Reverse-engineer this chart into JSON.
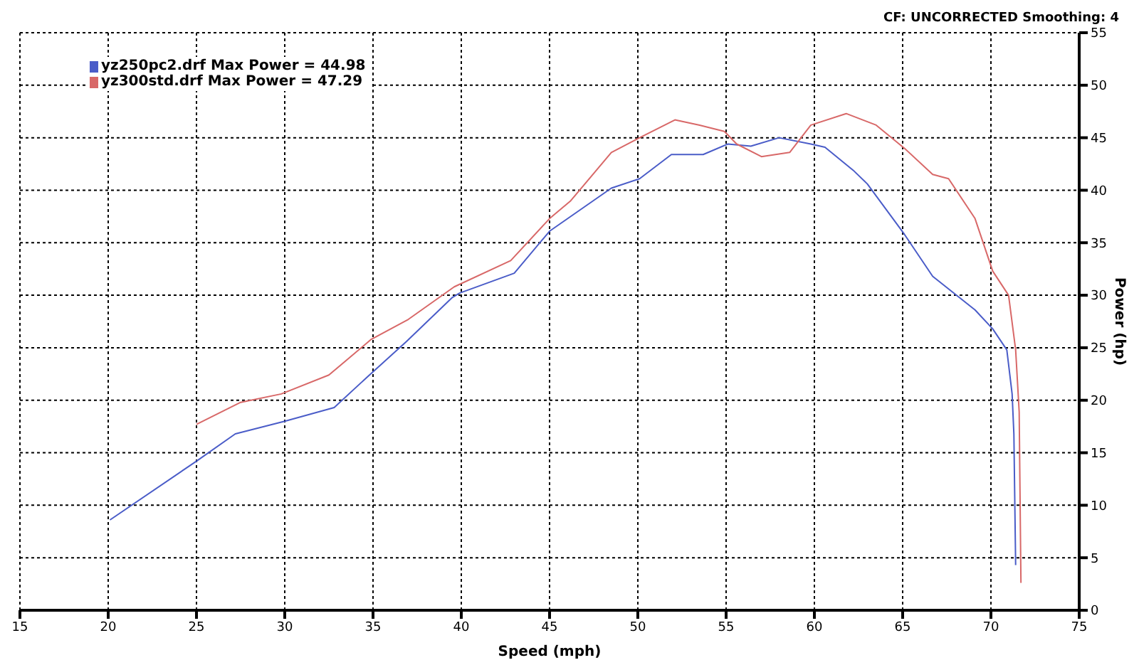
{
  "chart_data": {
    "type": "line",
    "xlabel": "Speed (mph)",
    "ylabel": "Power (hp)",
    "annotations": [
      "CF: UNCORRECTED  Smoothing: 4"
    ],
    "xlim": [
      15,
      75
    ],
    "xticks": [
      15,
      20,
      25,
      30,
      35,
      40,
      45,
      50,
      55,
      60,
      65,
      70,
      75
    ],
    "ylim": [
      0,
      55
    ],
    "yticks": [
      0,
      5,
      10,
      15,
      20,
      25,
      30,
      35,
      40,
      45,
      50,
      55
    ],
    "grid": true,
    "legend": "top left",
    "marker": "none",
    "line_style": "solid",
    "series": [
      {
        "name": "yz250pc2.drf Max Power = 44.98",
        "color": "#4a5cc8",
        "x": [
          20.1,
          25.0,
          27.2,
          30.0,
          32.8,
          34.6,
          36.9,
          39.5,
          39.9,
          43.0,
          45.0,
          48.5,
          50.1,
          51.9,
          53.7,
          55.1,
          56.4,
          58.0,
          59.8,
          60.6,
          62.2,
          63.0,
          65.1,
          66.7,
          69.1,
          70.1,
          70.9,
          71.2,
          71.3,
          71.4
        ],
        "values": [
          8.6,
          14.2,
          16.8,
          18.0,
          19.3,
          22.1,
          25.6,
          29.8,
          30.2,
          32.1,
          36.1,
          40.2,
          41.1,
          43.4,
          43.4,
          44.4,
          44.2,
          45.0,
          44.4,
          44.1,
          41.9,
          40.6,
          35.8,
          31.8,
          28.6,
          26.8,
          24.8,
          20.6,
          16.8,
          4.3
        ]
      },
      {
        "name": "yz300std.drf Max Power = 47.29",
        "color": "#d86868",
        "x": [
          25.0,
          27.5,
          29.8,
          32.5,
          34.9,
          37.0,
          39.6,
          42.8,
          45.0,
          46.2,
          48.5,
          50.1,
          52.1,
          53.5,
          54.9,
          55.6,
          57.0,
          58.6,
          59.8,
          61.8,
          63.5,
          65.1,
          66.7,
          67.6,
          69.1,
          70.1,
          71.0,
          71.4,
          71.6,
          71.7
        ],
        "values": [
          17.7,
          19.8,
          20.6,
          22.4,
          25.8,
          27.7,
          30.8,
          33.3,
          37.3,
          39.0,
          43.6,
          45.0,
          46.7,
          46.2,
          45.6,
          44.4,
          43.2,
          43.6,
          46.2,
          47.3,
          46.2,
          44.0,
          41.5,
          41.1,
          37.3,
          32.3,
          30.0,
          24.8,
          18.9,
          2.6
        ]
      }
    ]
  }
}
